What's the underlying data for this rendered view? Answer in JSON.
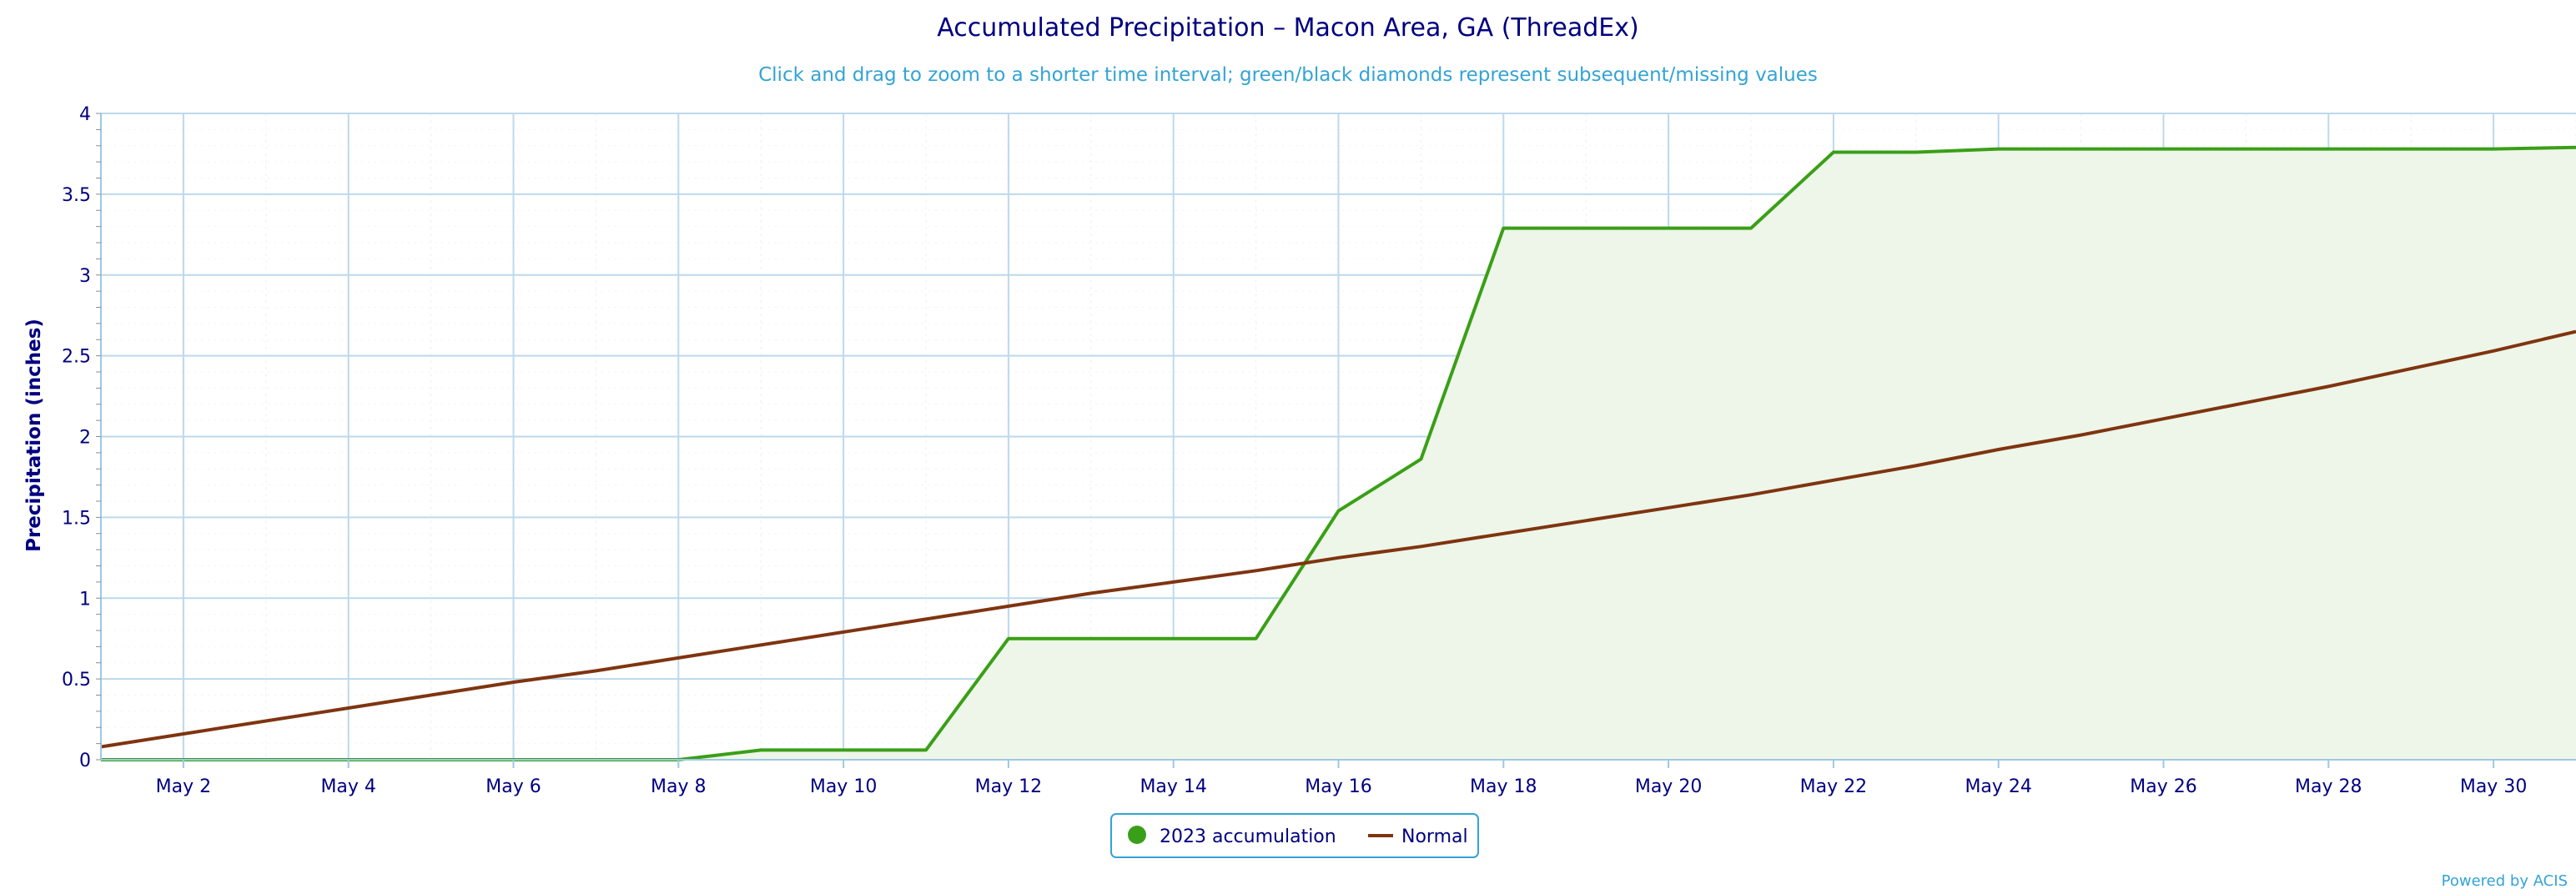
{
  "chart_data": {
    "type": "line",
    "title": "Accumulated Precipitation – Macon Area, GA (ThreadEx)",
    "subtitle": "Click and drag to zoom to a shorter time interval; green/black diamonds represent subsequent/missing values",
    "ylabel": "Precipitation (inches)",
    "xlabel": "",
    "ylim": [
      0,
      4
    ],
    "yticks": [
      "0",
      "0.5",
      "1",
      "1.5",
      "2",
      "2.5",
      "3",
      "3.5",
      "4"
    ],
    "x_range_days": [
      1,
      31
    ],
    "xticks": [
      {
        "day": 2,
        "label": "May 2"
      },
      {
        "day": 4,
        "label": "May 4"
      },
      {
        "day": 6,
        "label": "May 6"
      },
      {
        "day": 8,
        "label": "May 8"
      },
      {
        "day": 10,
        "label": "May 10"
      },
      {
        "day": 12,
        "label": "May 12"
      },
      {
        "day": 14,
        "label": "May 14"
      },
      {
        "day": 16,
        "label": "May 16"
      },
      {
        "day": 18,
        "label": "May 18"
      },
      {
        "day": 20,
        "label": "May 20"
      },
      {
        "day": 22,
        "label": "May 22"
      },
      {
        "day": 24,
        "label": "May 24"
      },
      {
        "day": 26,
        "label": "May 26"
      },
      {
        "day": 28,
        "label": "May 28"
      },
      {
        "day": 30,
        "label": "May 30"
      }
    ],
    "grid": true,
    "legend_position": "bottom-center",
    "series": [
      {
        "name": "2023 accumulation",
        "color": "#3a9f18",
        "fill": "#edf6e8",
        "points": [
          [
            1,
            0
          ],
          [
            2,
            0
          ],
          [
            3,
            0
          ],
          [
            4,
            0
          ],
          [
            5,
            0
          ],
          [
            6,
            0
          ],
          [
            7,
            0
          ],
          [
            8,
            0
          ],
          [
            9,
            0.06
          ],
          [
            10,
            0.06
          ],
          [
            11,
            0.06
          ],
          [
            12,
            0.75
          ],
          [
            13,
            0.75
          ],
          [
            14,
            0.75
          ],
          [
            15,
            0.75
          ],
          [
            16,
            1.54
          ],
          [
            17,
            1.86
          ],
          [
            18,
            3.29
          ],
          [
            19,
            3.29
          ],
          [
            20,
            3.29
          ],
          [
            21,
            3.29
          ],
          [
            22,
            3.76
          ],
          [
            23,
            3.76
          ],
          [
            24,
            3.78
          ],
          [
            25,
            3.78
          ],
          [
            26,
            3.78
          ],
          [
            27,
            3.78
          ],
          [
            28,
            3.78
          ],
          [
            29,
            3.78
          ],
          [
            30,
            3.78
          ],
          [
            31,
            3.79
          ]
        ]
      },
      {
        "name": "Normal",
        "color": "#7f3410",
        "points": [
          [
            1,
            0.08
          ],
          [
            2,
            0.16
          ],
          [
            3,
            0.24
          ],
          [
            4,
            0.32
          ],
          [
            5,
            0.4
          ],
          [
            6,
            0.48
          ],
          [
            7,
            0.55
          ],
          [
            8,
            0.63
          ],
          [
            9,
            0.71
          ],
          [
            10,
            0.79
          ],
          [
            11,
            0.87
          ],
          [
            12,
            0.95
          ],
          [
            13,
            1.03
          ],
          [
            14,
            1.1
          ],
          [
            15,
            1.17
          ],
          [
            16,
            1.25
          ],
          [
            17,
            1.32
          ],
          [
            18,
            1.4
          ],
          [
            19,
            1.48
          ],
          [
            20,
            1.56
          ],
          [
            21,
            1.64
          ],
          [
            22,
            1.73
          ],
          [
            23,
            1.82
          ],
          [
            24,
            1.92
          ],
          [
            25,
            2.01
          ],
          [
            26,
            2.11
          ],
          [
            27,
            2.21
          ],
          [
            28,
            2.31
          ],
          [
            29,
            2.42
          ],
          [
            30,
            2.53
          ],
          [
            31,
            2.65
          ]
        ]
      }
    ],
    "credits": "Powered by ACIS"
  },
  "colors": {
    "grid_major": "#bcd9ec",
    "grid_minor": "#f2f2f2",
    "axis_line": "#9ec8e4",
    "legend_border": "#33a3d6",
    "text": "#000080"
  }
}
